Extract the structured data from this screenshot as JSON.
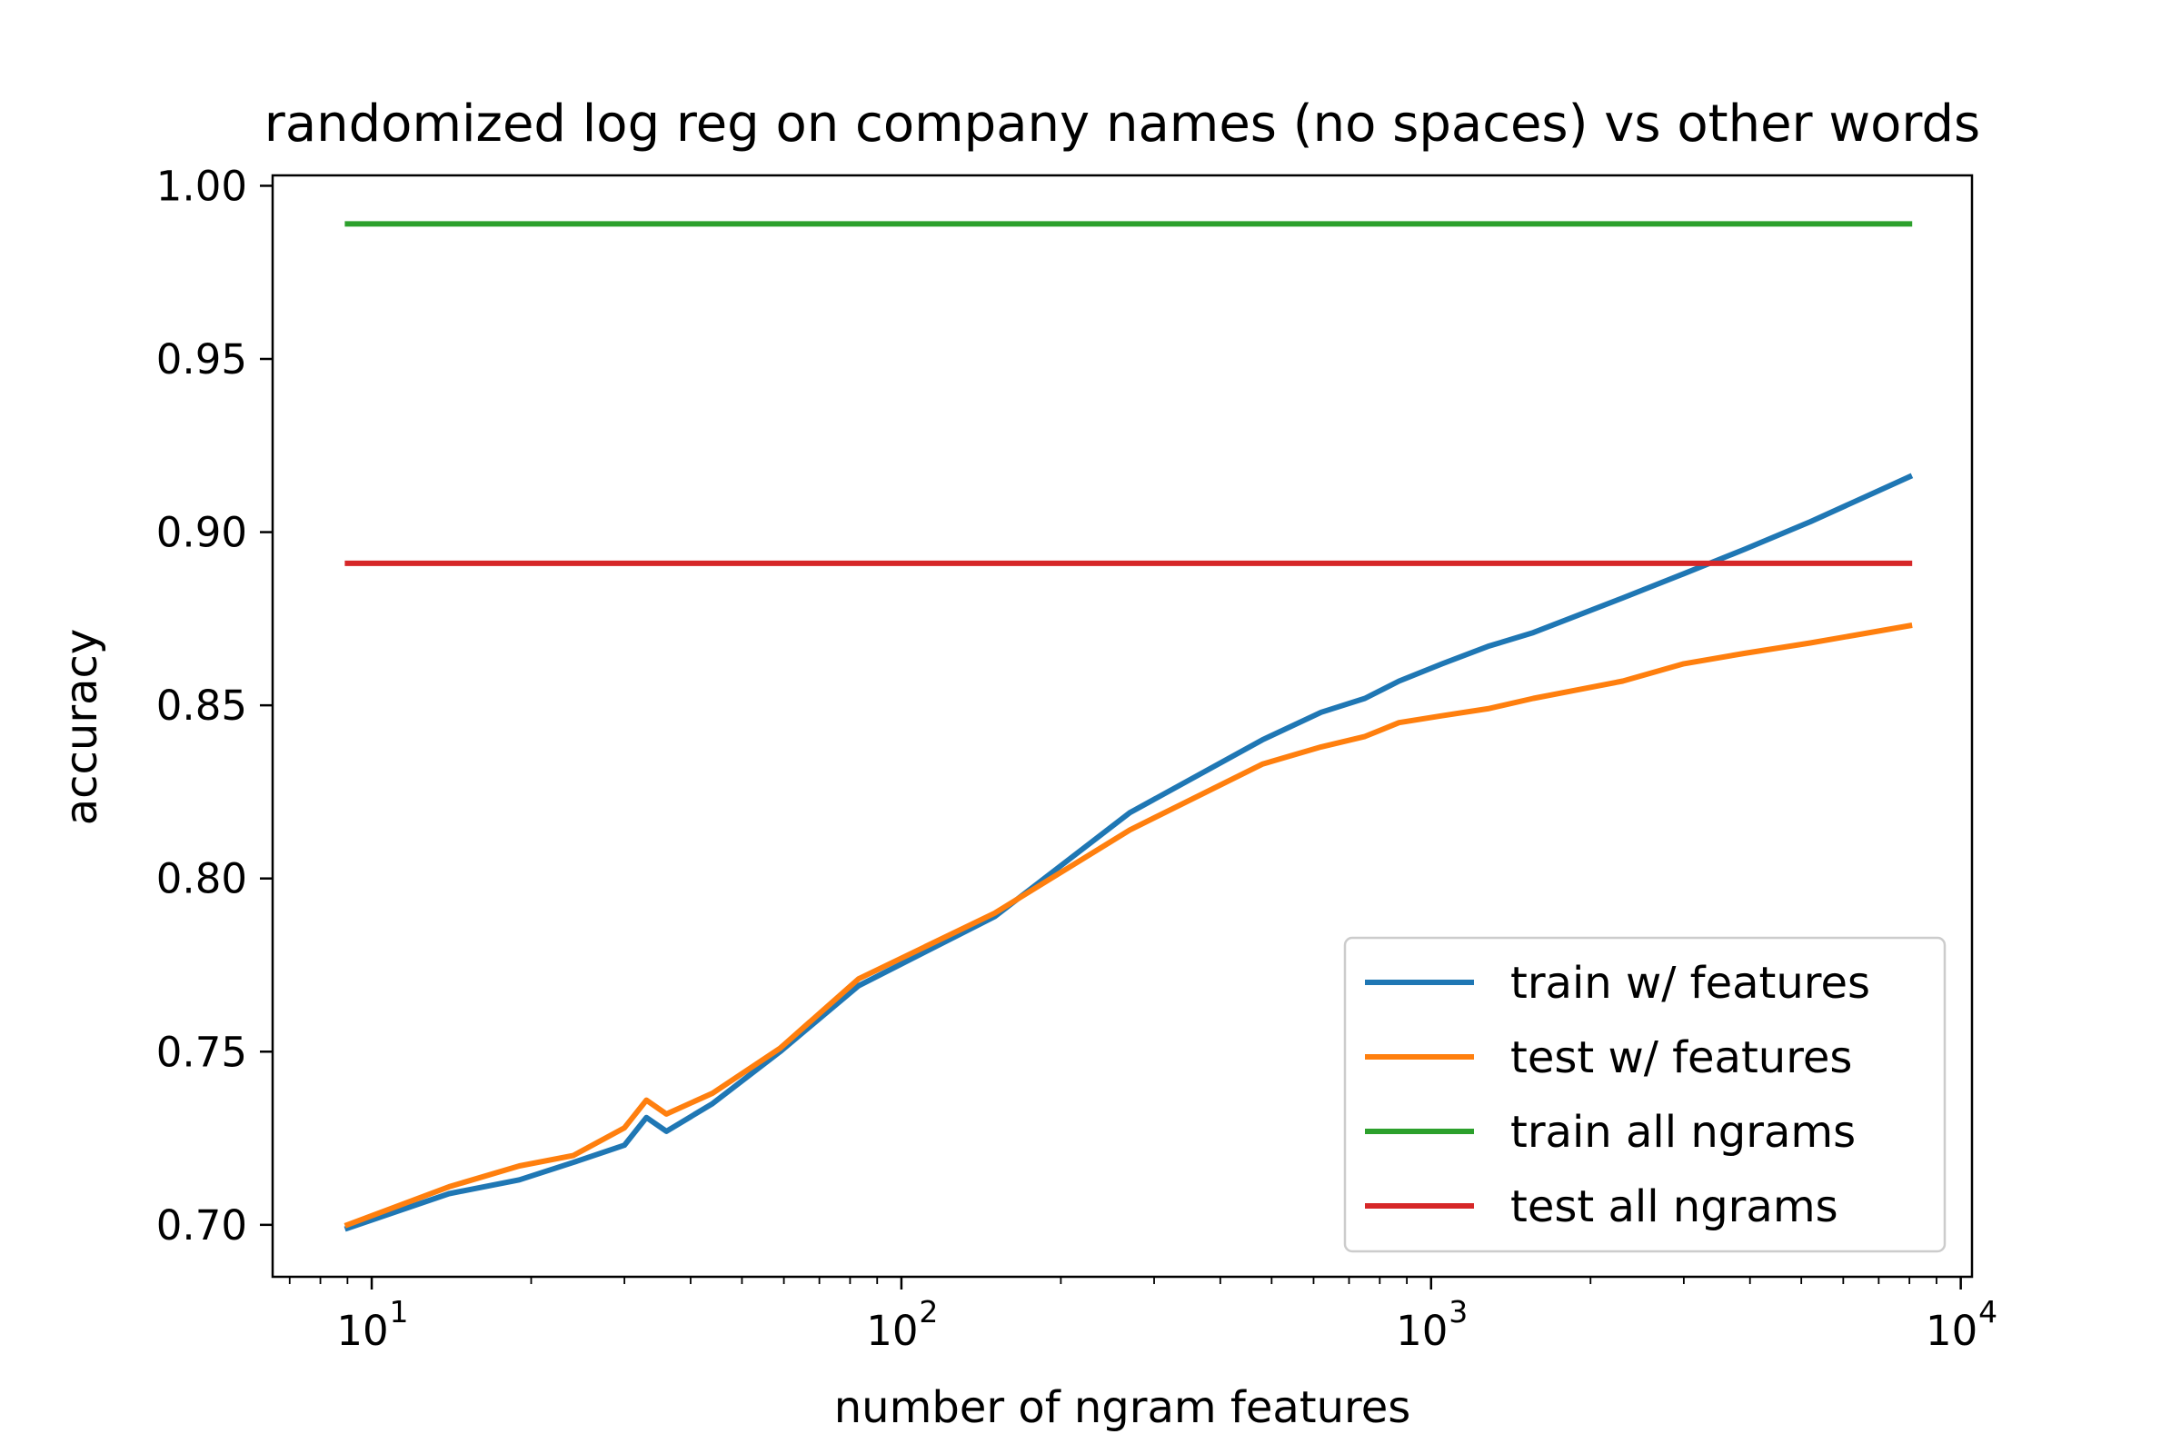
{
  "chart_data": {
    "type": "line",
    "title": "randomized log reg on company names (no spaces) vs other words",
    "xlabel": "number of ngram features",
    "ylabel": "accuracy",
    "xscale": "log",
    "xlim": [
      6.5,
      10500
    ],
    "ylim": [
      0.685,
      1.003
    ],
    "grid": false,
    "legend_position": "lower right",
    "x_ticks": [
      {
        "value": 10,
        "base": "10",
        "exp": "1"
      },
      {
        "value": 100,
        "base": "10",
        "exp": "2"
      },
      {
        "value": 1000,
        "base": "10",
        "exp": "3"
      },
      {
        "value": 10000,
        "base": "10",
        "exp": "4"
      }
    ],
    "y_ticks": [
      {
        "value": 0.7,
        "label": "0.70"
      },
      {
        "value": 0.75,
        "label": "0.75"
      },
      {
        "value": 0.8,
        "label": "0.80"
      },
      {
        "value": 0.85,
        "label": "0.85"
      },
      {
        "value": 0.9,
        "label": "0.90"
      },
      {
        "value": 0.95,
        "label": "0.95"
      },
      {
        "value": 1.0,
        "label": "1.00"
      }
    ],
    "series": [
      {
        "name": "train w/ features",
        "color": "#1f77b4",
        "x": [
          9,
          14,
          19,
          24,
          30,
          33,
          36,
          44,
          59,
          83,
          150,
          270,
          480,
          620,
          750,
          870,
          1050,
          1280,
          1560,
          2300,
          3000,
          3900,
          5200,
          8000
        ],
        "y": [
          0.699,
          0.709,
          0.713,
          0.718,
          0.723,
          0.731,
          0.727,
          0.735,
          0.75,
          0.769,
          0.789,
          0.819,
          0.84,
          0.848,
          0.852,
          0.857,
          0.862,
          0.867,
          0.871,
          0.881,
          0.888,
          0.895,
          0.903,
          0.916
        ]
      },
      {
        "name": "test w/ features",
        "color": "#ff7f0e",
        "x": [
          9,
          14,
          19,
          24,
          30,
          33,
          36,
          44,
          59,
          83,
          150,
          270,
          480,
          620,
          750,
          870,
          1050,
          1280,
          1560,
          2300,
          3000,
          3900,
          5200,
          8000
        ],
        "y": [
          0.7,
          0.711,
          0.717,
          0.72,
          0.728,
          0.736,
          0.732,
          0.738,
          0.751,
          0.771,
          0.79,
          0.814,
          0.833,
          0.838,
          0.841,
          0.845,
          0.847,
          0.849,
          0.852,
          0.857,
          0.862,
          0.865,
          0.868,
          0.873
        ]
      },
      {
        "name": "train all ngrams",
        "color": "#2ca02c",
        "x": [
          9,
          8000
        ],
        "y": [
          0.989,
          0.989
        ]
      },
      {
        "name": "test all ngrams",
        "color": "#d62728",
        "x": [
          9,
          8000
        ],
        "y": [
          0.891,
          0.891
        ]
      }
    ]
  }
}
